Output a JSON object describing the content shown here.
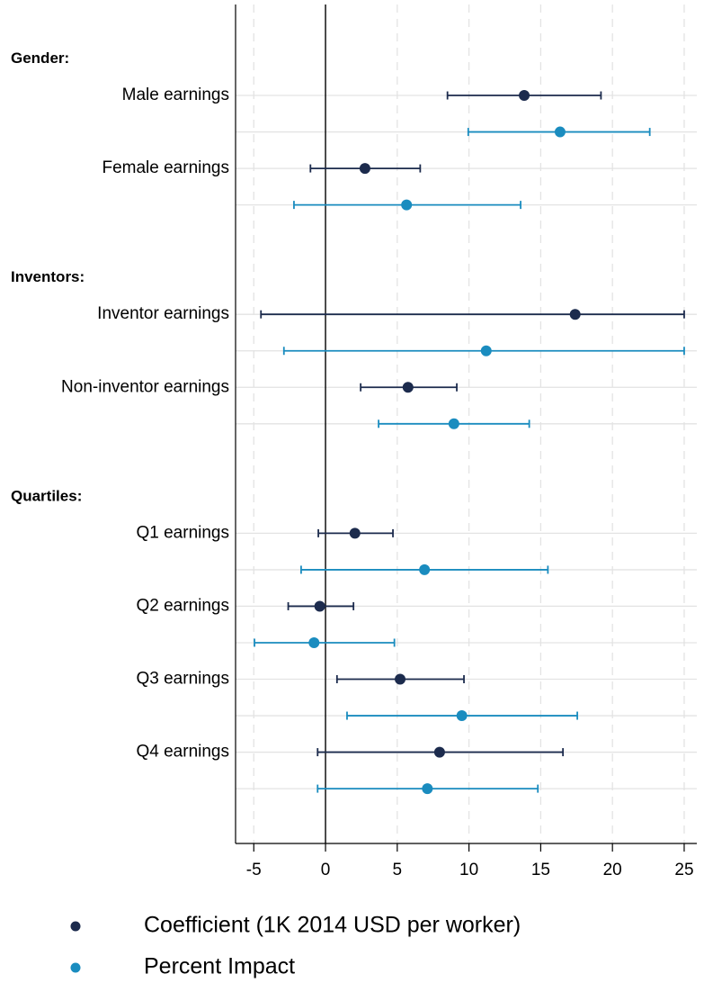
{
  "chart_data": {
    "type": "coefplot",
    "groups": [
      {
        "title": "Gender:",
        "categories": [
          "Male earnings",
          "Female earnings"
        ]
      },
      {
        "title": "Inventors:",
        "categories": [
          "Inventor earnings",
          "Non-inventor earnings"
        ]
      },
      {
        "title": "Quartiles:",
        "categories": [
          "Q1 earnings",
          "Q2 earnings",
          "Q3 earnings",
          "Q4 earnings"
        ]
      }
    ],
    "series": [
      {
        "name": "Coefficient (1K 2014 USD per worker)",
        "color": "#1c2b4d",
        "values": [
          13.85,
          2.75,
          17.4,
          5.75,
          2.05,
          -0.4,
          5.2,
          7.95
        ],
        "lower": [
          8.5,
          -1.05,
          -4.5,
          2.45,
          -0.5,
          -2.6,
          0.8,
          -0.55
        ],
        "upper": [
          19.2,
          6.6,
          25,
          9.15,
          4.7,
          1.95,
          9.65,
          16.55
        ]
      },
      {
        "name": "Percent Impact",
        "color": "#1a8cbf",
        "values": [
          16.35,
          5.65,
          11.2,
          8.95,
          6.9,
          -0.8,
          9.5,
          7.1
        ],
        "lower": [
          9.95,
          -2.2,
          -2.9,
          3.7,
          -1.7,
          -4.95,
          1.5,
          -0.55
        ],
        "upper": [
          22.6,
          13.6,
          25,
          14.2,
          15.5,
          4.8,
          17.55,
          14.8
        ]
      }
    ],
    "xlim": [
      -6.27,
      25.88
    ],
    "xticks": [
      -5,
      0,
      5,
      10,
      15,
      20,
      25
    ],
    "reference_line": 0,
    "grid": true
  }
}
